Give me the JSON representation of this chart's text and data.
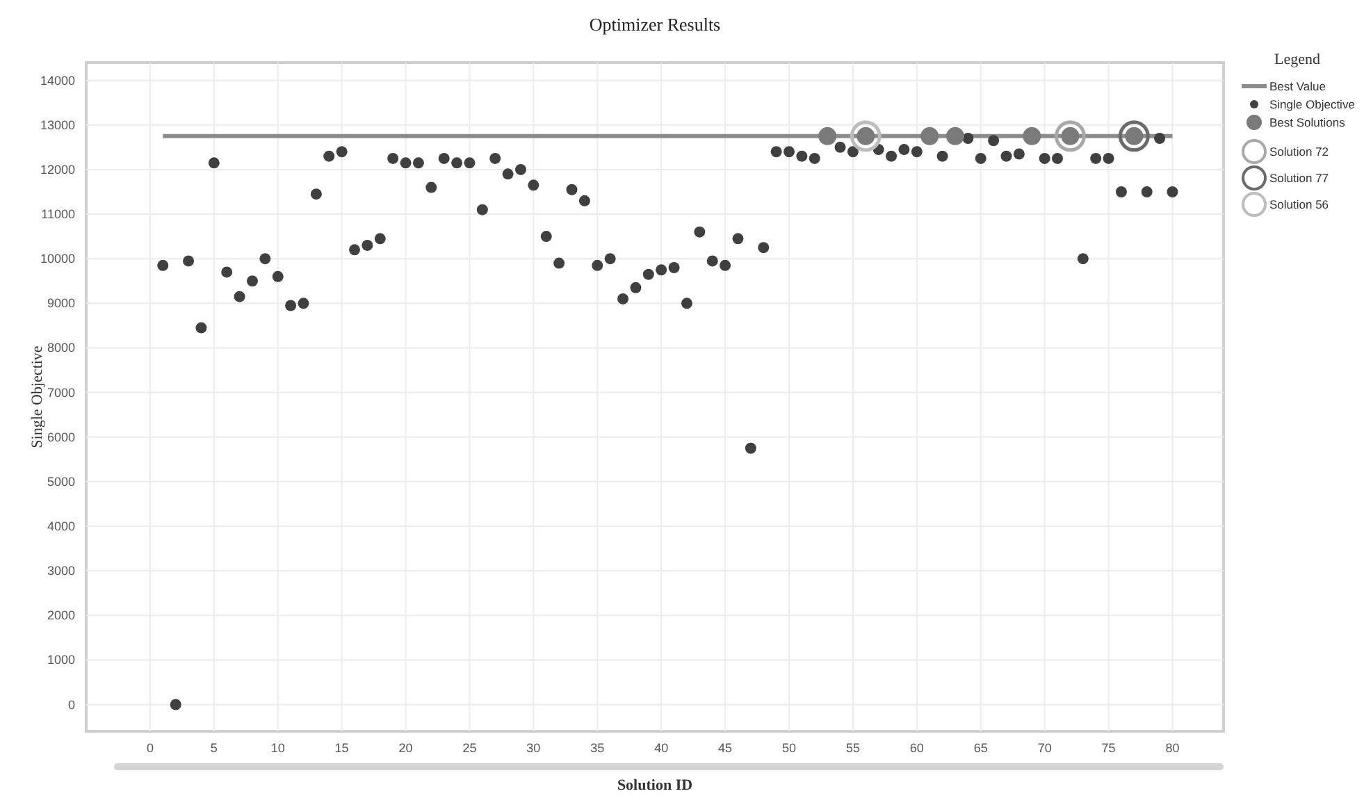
{
  "chart_data": {
    "type": "scatter",
    "title": "Optimizer Results",
    "xlabel": "Solution ID",
    "ylabel": "Single Objective",
    "legend_title": "Legend",
    "legend": "right",
    "grid": true,
    "xlim": [
      -5,
      84
    ],
    "xticks": [
      0,
      5,
      10,
      15,
      20,
      25,
      30,
      35,
      40,
      45,
      50,
      55,
      60,
      65,
      70,
      75,
      80
    ],
    "ylim": [
      -600,
      14400
    ],
    "yticks": [
      0,
      1000,
      2000,
      3000,
      4000,
      5000,
      6000,
      7000,
      8000,
      9000,
      10000,
      11000,
      12000,
      13000,
      14000
    ],
    "series": [
      {
        "name": "Best Value",
        "type": "line",
        "color": "#8c8c8c",
        "x": [
          1,
          80
        ],
        "values": [
          12750,
          12750
        ]
      },
      {
        "name": "Single Objective",
        "marker": "circle",
        "color": "#404040",
        "x": [
          1,
          2,
          3,
          4,
          5,
          6,
          7,
          8,
          9,
          10,
          11,
          12,
          13,
          14,
          15,
          16,
          17,
          18,
          19,
          20,
          21,
          22,
          23,
          24,
          25,
          26,
          27,
          28,
          29,
          30,
          31,
          32,
          33,
          34,
          35,
          36,
          37,
          38,
          39,
          40,
          41,
          42,
          43,
          44,
          45,
          46,
          47,
          48,
          49,
          50,
          51,
          52,
          54,
          55,
          57,
          58,
          59,
          60,
          62,
          64,
          65,
          66,
          67,
          68,
          70,
          71,
          73,
          74,
          75,
          76,
          78,
          79,
          80
        ],
        "values": [
          9850,
          0,
          9950,
          8450,
          12150,
          9700,
          9150,
          9500,
          10000,
          9600,
          8950,
          9000,
          11450,
          12300,
          12400,
          10200,
          10300,
          10450,
          12250,
          12150,
          12150,
          11600,
          12250,
          12150,
          12150,
          11100,
          12250,
          11900,
          12000,
          11650,
          10500,
          9900,
          11550,
          11300,
          9850,
          10000,
          9100,
          9350,
          9650,
          9750,
          9800,
          9000,
          10600,
          9950,
          9850,
          10450,
          5750,
          10250,
          12400,
          12400,
          12300,
          12250,
          12500,
          12400,
          12450,
          12300,
          12450,
          12400,
          12300,
          12700,
          12250,
          12650,
          12300,
          12350,
          12250,
          12250,
          10000,
          12250,
          12250,
          11500,
          11500,
          12700,
          11500
        ]
      },
      {
        "name": "Best Solutions",
        "marker": "circle",
        "color": "#7a7a7a",
        "x": [
          53,
          56,
          61,
          63,
          69,
          72,
          77
        ],
        "values": [
          12750,
          12750,
          12750,
          12750,
          12750,
          12750,
          12750
        ]
      },
      {
        "name": "Solution 72",
        "marker": "circle",
        "color": "#a8a8a8",
        "x": [
          72
        ],
        "values": [
          12750
        ]
      },
      {
        "name": "Solution 77",
        "marker": "circle",
        "color": "#6a6a6a",
        "x": [
          77
        ],
        "values": [
          12750
        ]
      },
      {
        "name": "Solution 56",
        "marker": "circle",
        "color": "#bdbdbd",
        "x": [
          56
        ],
        "values": [
          12750
        ]
      }
    ]
  }
}
